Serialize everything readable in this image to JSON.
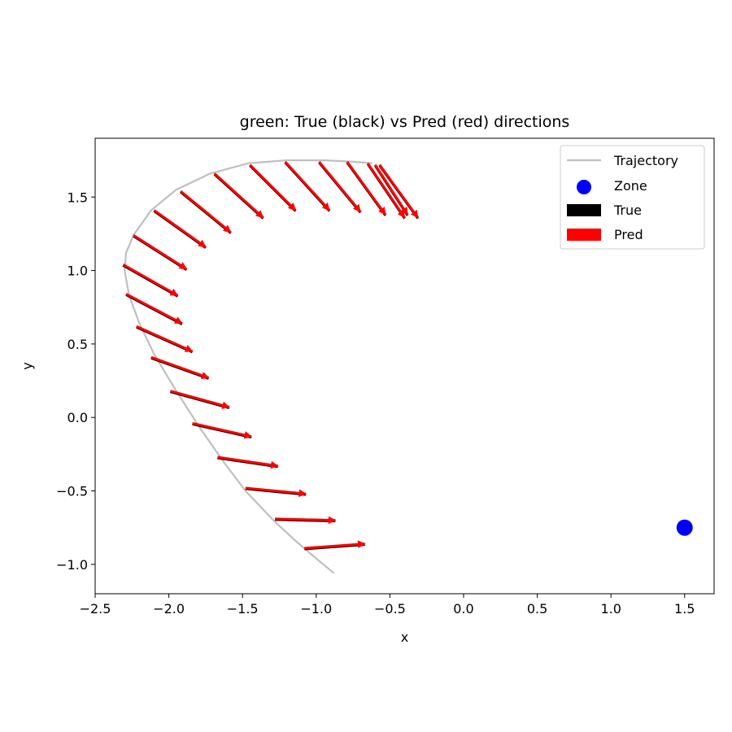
{
  "chart_data": {
    "type": "scatter",
    "title": "green: True (black) vs Pred (red) directions",
    "xlabel": "x",
    "ylabel": "y",
    "xlim": [
      -2.5,
      1.7
    ],
    "ylim": [
      -1.2,
      1.9
    ],
    "xticks": [
      {
        "value": -2.5,
        "label": "−2.5"
      },
      {
        "value": -2.0,
        "label": "−2.0"
      },
      {
        "value": -1.5,
        "label": "−1.5"
      },
      {
        "value": -1.0,
        "label": "−1.0"
      },
      {
        "value": -0.5,
        "label": "−0.5"
      },
      {
        "value": 0.0,
        "label": "0.0"
      },
      {
        "value": 0.5,
        "label": "0.5"
      },
      {
        "value": 1.0,
        "label": "1.0"
      },
      {
        "value": 1.5,
        "label": "1.5"
      }
    ],
    "yticks": [
      {
        "value": -1.0,
        "label": "−1.0"
      },
      {
        "value": -0.5,
        "label": "−0.5"
      },
      {
        "value": 0.0,
        "label": "0.0"
      },
      {
        "value": 0.5,
        "label": "0.5"
      },
      {
        "value": 1.0,
        "label": "1.0"
      },
      {
        "value": 1.5,
        "label": "1.5"
      }
    ],
    "grid": false,
    "legend": {
      "placement": "top-right",
      "entries": [
        {
          "label": "Trajectory",
          "kind": "line",
          "color": "#bfbfbf"
        },
        {
          "label": "Zone",
          "kind": "marker",
          "color": "#0000ff"
        },
        {
          "label": "True",
          "kind": "patch",
          "color": "#000000"
        },
        {
          "label": "Pred",
          "kind": "patch",
          "color": "#ff0000"
        }
      ]
    },
    "trajectory": {
      "color": "#bfbfbf",
      "points": [
        [
          -0.88,
          -1.06
        ],
        [
          -1.0,
          -0.96
        ],
        [
          -1.14,
          -0.84
        ],
        [
          -1.29,
          -0.7
        ],
        [
          -1.48,
          -0.5
        ],
        [
          -1.63,
          -0.3
        ],
        [
          -1.79,
          -0.07
        ],
        [
          -1.95,
          0.18
        ],
        [
          -2.1,
          0.43
        ],
        [
          -2.2,
          0.64
        ],
        [
          -2.27,
          0.83
        ],
        [
          -2.3,
          1.0
        ],
        [
          -2.29,
          1.12
        ],
        [
          -2.24,
          1.24
        ],
        [
          -2.12,
          1.41
        ],
        [
          -1.95,
          1.55
        ],
        [
          -1.72,
          1.66
        ],
        [
          -1.46,
          1.73
        ],
        [
          -1.2,
          1.75
        ],
        [
          -0.94,
          1.75
        ],
        [
          -0.75,
          1.74
        ],
        [
          -0.62,
          1.73
        ]
      ]
    },
    "zone": {
      "x": 1.5,
      "y": -0.75,
      "color": "#0000ff"
    },
    "arrows": {
      "true_color": "#000000",
      "pred_color": "#ff0000",
      "items": [
        {
          "x": -1.08,
          "y": -0.89,
          "dx": 0.41,
          "dy": 0.03
        },
        {
          "x": -1.28,
          "y": -0.69,
          "dx": 0.41,
          "dy": -0.01
        },
        {
          "x": -1.48,
          "y": -0.48,
          "dx": 0.41,
          "dy": -0.04
        },
        {
          "x": -1.67,
          "y": -0.27,
          "dx": 0.41,
          "dy": -0.06
        },
        {
          "x": -1.84,
          "y": -0.04,
          "dx": 0.4,
          "dy": -0.09
        },
        {
          "x": -1.99,
          "y": 0.18,
          "dx": 0.4,
          "dy": -0.11
        },
        {
          "x": -2.12,
          "y": 0.41,
          "dx": 0.39,
          "dy": -0.14
        },
        {
          "x": -2.22,
          "y": 0.62,
          "dx": 0.38,
          "dy": -0.17
        },
        {
          "x": -2.29,
          "y": 0.84,
          "dx": 0.38,
          "dy": -0.2
        },
        {
          "x": -2.31,
          "y": 1.04,
          "dx": 0.37,
          "dy": -0.21
        },
        {
          "x": -2.24,
          "y": 1.24,
          "dx": 0.36,
          "dy": -0.23
        },
        {
          "x": -2.1,
          "y": 1.41,
          "dx": 0.35,
          "dy": -0.25
        },
        {
          "x": -1.92,
          "y": 1.54,
          "dx": 0.34,
          "dy": -0.28
        },
        {
          "x": -1.69,
          "y": 1.66,
          "dx": 0.33,
          "dy": -0.3
        },
        {
          "x": -1.45,
          "y": 1.72,
          "dx": 0.31,
          "dy": -0.31
        },
        {
          "x": -1.21,
          "y": 1.74,
          "dx": 0.3,
          "dy": -0.33
        },
        {
          "x": -0.98,
          "y": 1.74,
          "dx": 0.28,
          "dy": -0.34
        },
        {
          "x": -0.79,
          "y": 1.74,
          "dx": 0.26,
          "dy": -0.36
        },
        {
          "x": -0.65,
          "y": 1.73,
          "dx": 0.25,
          "dy": -0.37
        },
        {
          "x": -0.57,
          "y": 1.72,
          "dx": 0.26,
          "dy": -0.36
        },
        {
          "x": -0.6,
          "y": 1.72,
          "dx": 0.22,
          "dy": -0.34
        }
      ]
    }
  }
}
